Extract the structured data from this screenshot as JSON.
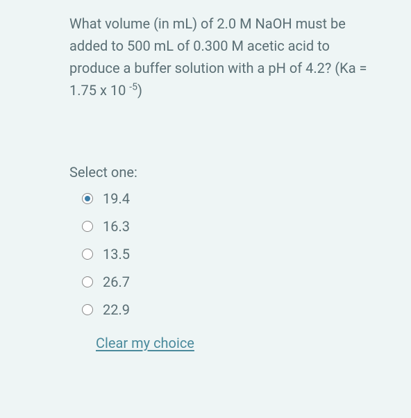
{
  "question": {
    "text_parts": {
      "p1": "What volume (in mL) of 2.0 M NaOH must be added to 500 mL of 0.300 M acetic acid to produce a buffer solution with a pH of 4.2? (Ka = 1.75 x 10 ",
      "exp": "-5",
      "p2": ")"
    },
    "text_color": "#5a6e74",
    "font_size": 20,
    "background_color": "#eef5f5"
  },
  "select_label": "Select one:",
  "options": [
    {
      "label": "19.4",
      "selected": true
    },
    {
      "label": "16.3",
      "selected": false
    },
    {
      "label": "13.5",
      "selected": false
    },
    {
      "label": "26.7",
      "selected": false
    },
    {
      "label": "22.9",
      "selected": false
    }
  ],
  "clear_choice_label": "Clear my choice",
  "radio_selected_color": "#3b7ea8",
  "link_color": "#4a8a9c"
}
